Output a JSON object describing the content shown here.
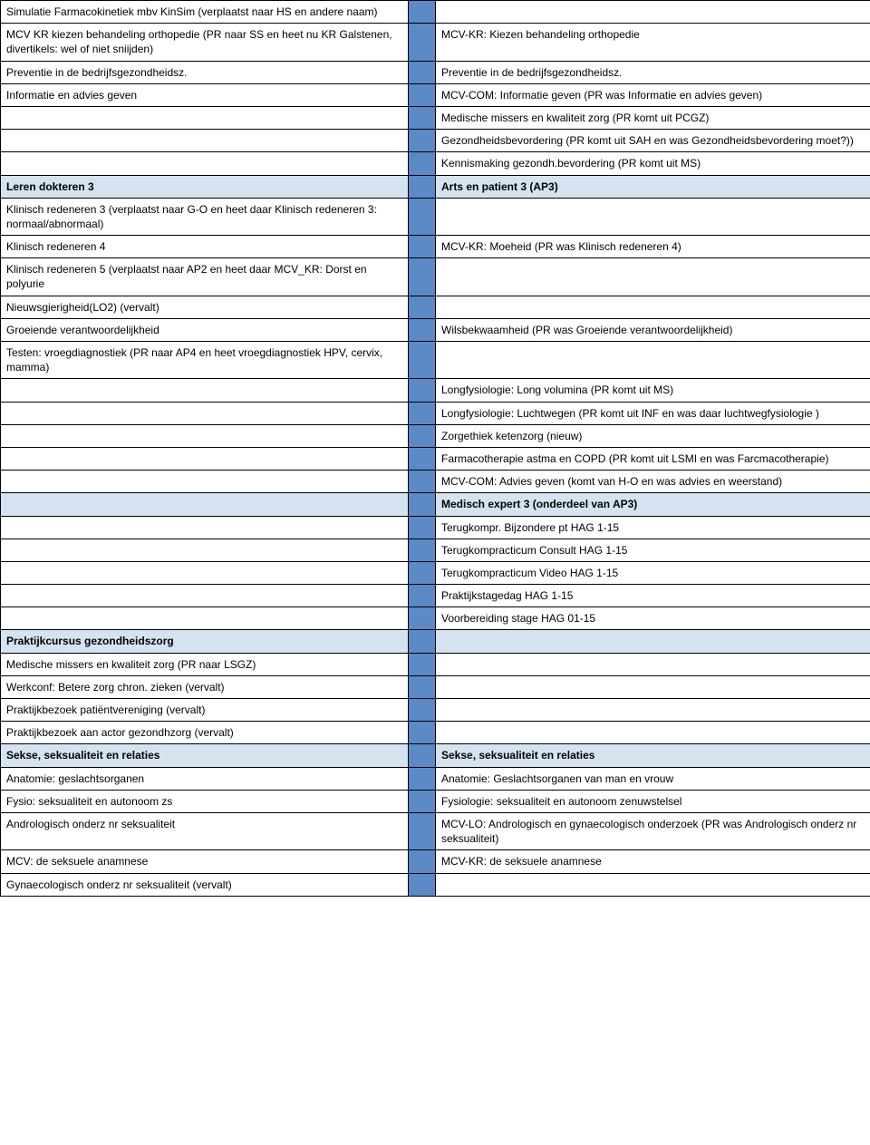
{
  "colors": {
    "mid_blue": "#5b8ac6",
    "header_blue": "#d5e3f0",
    "border": "#000000",
    "text": "#000000",
    "background": "#ffffff"
  },
  "font": {
    "family": "Arial",
    "size_pt": 9
  },
  "rows": [
    {
      "left": "Simulatie Farmacokinetiek mbv KinSim (verplaatst naar HS en andere naam)",
      "right": "",
      "mid": true,
      "header": false,
      "mergeDown": 2
    },
    {
      "left": "MCV KR kiezen behandeling orthopedie (PR naar SS en heet nu KR Galstenen, divertikels: wel of niet sniijden)",
      "right": "MCV-KR: Kiezen behandeling orthopedie",
      "mid": true,
      "header": false
    },
    {
      "left": "Preventie in de bedrijfsgezondheidsz.",
      "right": "Preventie in de bedrijfsgezondheidsz.",
      "mid": true,
      "header": false
    },
    {
      "left": "Informatie en advies geven",
      "right": "MCV-COM: Informatie geven (PR was Informatie en advies geven)",
      "mid": true,
      "header": false
    },
    {
      "left": "",
      "right": "Medische missers en kwaliteit zorg (PR komt uit PCGZ)",
      "mid": true,
      "header": false
    },
    {
      "left": "",
      "right": "Gezondheidsbevordering (PR komt uit SAH en was Gezondheidsbevordering moet?))",
      "mid": true,
      "header": false
    },
    {
      "left": "",
      "right": "Kennismaking gezondh.bevordering (PR komt uit MS)",
      "mid": true,
      "header": false
    },
    {
      "left": "Leren dokteren 3",
      "right": "Arts en patient 3 (AP3)",
      "mid": true,
      "header": true
    },
    {
      "left": "Klinisch redeneren 3 (verplaatst naar G-O en heet daar Klinisch redeneren 3: normaal/abnormaal)",
      "right": "",
      "mid": true,
      "header": false
    },
    {
      "left": "Klinisch redeneren 4",
      "right": "MCV-KR: Moeheid (PR was Klinisch redeneren 4)",
      "mid": true,
      "header": false
    },
    {
      "left": "Klinisch redeneren 5 (verplaatst naar AP2 en heet daar MCV_KR: Dorst en polyurie",
      "right": "",
      "mid": true,
      "header": false
    },
    {
      "left": "Nieuwsgierigheid(LO2) (vervalt)",
      "right": "",
      "mid": true,
      "header": false
    },
    {
      "left": "Groeiende verantwoordelijkheid",
      "right": "Wilsbekwaamheid (PR was Groeiende verantwoordelijkheid)",
      "mid": true,
      "header": false
    },
    {
      "left": "Testen: vroegdiagnostiek (PR naar AP4 en heet vroegdiagnostiek HPV, cervix, mamma)",
      "right": "",
      "mid": true,
      "header": false
    },
    {
      "left": "",
      "right": "Longfysiologie: Long volumina (PR komt uit MS)",
      "mid": true,
      "header": false
    },
    {
      "left": "",
      "right": "Longfysiologie: Luchtwegen (PR komt uit INF en was daar luchtwegfysiologie )",
      "mid": true,
      "header": false
    },
    {
      "left": "",
      "right": "Zorgethiek ketenzorg (nieuw)",
      "mid": true,
      "header": false
    },
    {
      "left": "",
      "right": "Farmacotherapie astma en COPD (PR komt uit LSMI en was Farcmacotherapie)",
      "mid": true,
      "header": false
    },
    {
      "left": "",
      "right": "MCV-COM: Advies geven (komt van H-O en was advies en weerstand)",
      "mid": true,
      "header": false
    },
    {
      "left": "",
      "right": "Medisch expert 3 (onderdeel van AP3)",
      "mid": true,
      "header": true
    },
    {
      "left": "",
      "right": "Terugkompr. Bijzondere pt HAG 1-15",
      "mid": true,
      "header": false
    },
    {
      "left": "",
      "right": "Terugkompracticum Consult HAG 1-15",
      "mid": true,
      "header": false
    },
    {
      "left": "",
      "right": "Terugkompracticum Video HAG 1-15",
      "mid": true,
      "header": false
    },
    {
      "left": "",
      "right": "Praktijkstagedag HAG 1-15",
      "mid": true,
      "header": false
    },
    {
      "left": "",
      "right": "Voorbereiding stage HAG 01-15",
      "mid": true,
      "header": false
    },
    {
      "left": "Praktijkcursus gezondheidszorg",
      "right": "",
      "mid": true,
      "header": true
    },
    {
      "left": "Medische missers en kwaliteit zorg (PR naar LSGZ)",
      "right": "",
      "mid": true,
      "header": false
    },
    {
      "left": "Werkconf: Betere zorg chron. zieken (vervalt)",
      "right": "",
      "mid": true,
      "header": false
    },
    {
      "left": "Praktijkbezoek patiëntvereniging (vervalt)",
      "right": "",
      "mid": true,
      "header": false
    },
    {
      "left": "Praktijkbezoek aan actor gezondhzorg (vervalt)",
      "right": "",
      "mid": true,
      "header": false
    },
    {
      "left": "Sekse, seksualiteit en relaties",
      "right": "Sekse, seksualiteit en relaties",
      "mid": true,
      "header": true
    },
    {
      "left": "Anatomie: geslachtsorganen",
      "right": "Anatomie: Geslachtsorganen van man en vrouw",
      "mid": true,
      "header": false
    },
    {
      "left": "Fysio: seksualiteit en autonoom zs",
      "right": "Fysiologie: seksualiteit en autonoom zenuwstelsel",
      "mid": true,
      "header": false
    },
    {
      "left": "Andrologisch onderz nr seksualiteit",
      "right": "MCV-LO: Andrologisch en gynaecologisch onderzoek (PR was Andrologisch onderz nr seksualiteit)",
      "mid": true,
      "header": false
    },
    {
      "left": "MCV: de seksuele anamnese",
      "right": "MCV-KR: de seksuele anamnese",
      "mid": true,
      "header": false
    },
    {
      "left": "Gynaecologisch onderz nr seksualiteit (vervalt)",
      "right": "",
      "mid": true,
      "header": false
    }
  ]
}
